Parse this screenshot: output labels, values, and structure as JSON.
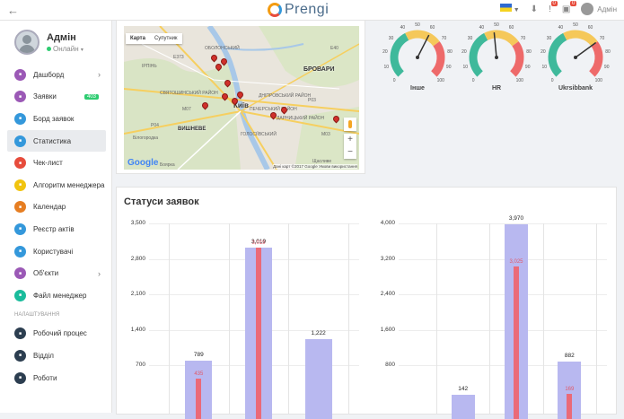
{
  "topbar": {
    "logo_text": "Prengi",
    "admin_label": "Адмін",
    "badge_1": "0",
    "badge_2": "0"
  },
  "sidebar": {
    "user_name": "Адмін",
    "user_status": "Онлайн",
    "settings_section": "НАЛАШТУВАННЯ",
    "items": [
      {
        "label": "Дашборд",
        "color": "#9b59b6",
        "icon": "dashboard-icon",
        "arrow": true
      },
      {
        "label": "Заявки",
        "color": "#9b59b6",
        "icon": "requests-icon",
        "count": "403"
      },
      {
        "label": "Борд заявок",
        "color": "#3498db",
        "icon": "board-icon"
      },
      {
        "label": "Статистика",
        "color": "#3498db",
        "icon": "chart-icon",
        "active": true
      },
      {
        "label": "Чек-лист",
        "color": "#e74c3c",
        "icon": "checklist-icon"
      },
      {
        "label": "Алгоритм менеджера",
        "color": "#f1c40f",
        "icon": "lightbulb-icon"
      },
      {
        "label": "Календар",
        "color": "#e67e22",
        "icon": "calendar-icon"
      },
      {
        "label": "Реєстр актів",
        "color": "#3498db",
        "icon": "registry-icon"
      },
      {
        "label": "Користувачі",
        "color": "#3498db",
        "icon": "users-icon"
      },
      {
        "label": "Об'єкти",
        "color": "#9b59b6",
        "icon": "objects-icon",
        "arrow": true
      },
      {
        "label": "Файл менеджер",
        "color": "#1abc9c",
        "icon": "file-manager-icon"
      }
    ],
    "settings_items": [
      {
        "label": "Робочий процес",
        "color": "#2c3e50",
        "icon": "workflow-icon"
      },
      {
        "label": "Відділ",
        "color": "#2c3e50",
        "icon": "department-icon"
      },
      {
        "label": "Роботи",
        "color": "#2c3e50",
        "icon": "tools-icon"
      }
    ]
  },
  "map": {
    "tab_map": "Карта",
    "tab_satellite": "Супутник",
    "city": "Київ",
    "google": "Google",
    "credit": "Дані карт ©2017 Google   Умови використання",
    "labels": [
      "ІРПІНЬ",
      "ОБОЛОНСЬКИЙ",
      "СВЯТОШИНСЬКИЙ РАЙОН",
      "БРОВАРИ",
      "ДНІПРОВСЬКИЙ РАЙОН",
      "ДАРНИЦЬКИЙ РАЙОН",
      "ВИШНЕВЕ",
      "Білогородка",
      "Боярка",
      "ГОЛОСІЇВСЬКИЙ",
      "ПЕЧЕРСЬКИЙ РАЙОН",
      "Щасливе",
      "E40",
      "E373",
      "M07",
      "P03",
      "P04",
      "M03"
    ]
  },
  "gauges": [
    {
      "label": "Інше",
      "value": 60,
      "max": 100,
      "ticks": [
        "0",
        "10",
        "20",
        "30",
        "40",
        "50",
        "60",
        "70",
        "80",
        "90",
        "100"
      ]
    },
    {
      "label": "HR",
      "value": 48,
      "max": 100,
      "ticks": [
        "0",
        "10",
        "20",
        "30",
        "40",
        "50",
        "60",
        "70",
        "80",
        "90",
        "100"
      ]
    },
    {
      "label": "Ukrsibbank",
      "value": 70,
      "max": 100,
      "ticks": [
        "0",
        "10",
        "20",
        "30",
        "40",
        "50",
        "60",
        "70",
        "80",
        "90",
        "100"
      ]
    }
  ],
  "stats": {
    "title": "Статуси заявок"
  },
  "chart_data": [
    {
      "type": "bar",
      "ylim": [
        0,
        3500
      ],
      "yticks": [
        "3,500",
        "2,800",
        "2,100",
        "1,400",
        "700"
      ],
      "series": [
        {
          "values": [
            789,
            3019,
            1222
          ]
        },
        {
          "values": [
            435,
            3019,
            0
          ]
        }
      ],
      "labels_back": [
        "789",
        "3,019",
        "1,222"
      ],
      "labels_front": [
        "435",
        "3,019",
        ""
      ]
    },
    {
      "type": "bar",
      "ylim": [
        0,
        4000
      ],
      "yticks": [
        "4,000",
        "3,200",
        "2,400",
        "1,600",
        "800"
      ],
      "series": [
        {
          "values": [
            142,
            3970,
            882
          ]
        },
        {
          "values": [
            0,
            3025,
            169
          ]
        }
      ],
      "labels_back": [
        "142",
        "3,970",
        "882"
      ],
      "labels_front": [
        "",
        "3,025",
        "169"
      ]
    }
  ]
}
